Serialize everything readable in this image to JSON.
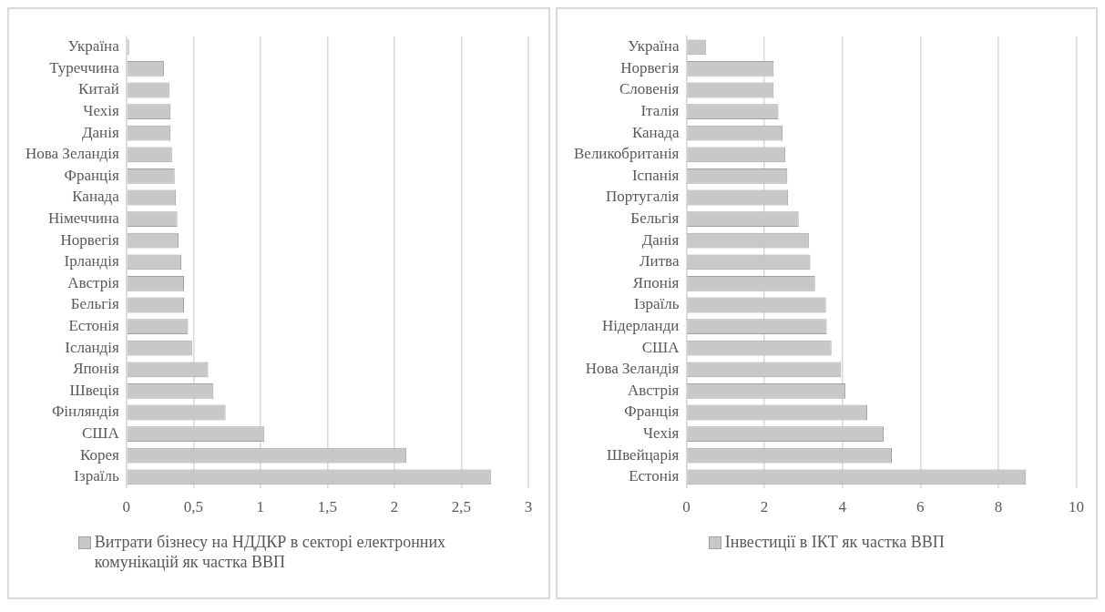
{
  "chart_data": [
    {
      "type": "bar",
      "orientation": "horizontal",
      "categories": [
        "Україна",
        "Туреччина",
        "Китай",
        "Чехія",
        "Данія",
        "Нова Зеландія",
        "Франція",
        "Канада",
        "Німеччина",
        "Норвегія",
        "Ірландія",
        "Австрія",
        "Бельгія",
        "Естонія",
        "Ісландія",
        "Японія",
        "Швеція",
        "Фінляндія",
        "США",
        "Корея",
        "Ізраїль"
      ],
      "series": [
        {
          "name": "Витрати бізнесу на НДДКР в секторі електронних комунікацій як частка ВВП",
          "color": "#c8c8c8",
          "values": [
            0.02,
            0.28,
            0.32,
            0.33,
            0.33,
            0.34,
            0.36,
            0.37,
            0.38,
            0.39,
            0.41,
            0.43,
            0.43,
            0.46,
            0.49,
            0.61,
            0.65,
            0.74,
            1.03,
            2.09,
            2.72
          ]
        }
      ],
      "xlim": [
        0,
        3
      ],
      "xticks": [
        0,
        {
          "value": 0.5,
          "label": "0,5"
        },
        1,
        {
          "value": 1.5,
          "label": "1,5"
        },
        2,
        {
          "value": 2.5,
          "label": "2,5"
        },
        3
      ],
      "grid": "x",
      "legend": "bottom"
    },
    {
      "type": "bar",
      "orientation": "horizontal",
      "categories": [
        "Україна",
        "Норвегія",
        "Словенія",
        "Італія",
        "Канада",
        "Великобританія",
        "Іспанія",
        "Португалія",
        "Бельгія",
        "Данія",
        "Литва",
        "Японія",
        "Ізраїль",
        "Нідерланди",
        "США",
        "Нова Зеландія",
        "Австрія",
        "Франція",
        "Чехія",
        "Швейцарія",
        "Естонія"
      ],
      "series": [
        {
          "name": "Інвестиції в ІКТ як частка ВВП",
          "color": "#c8c8c8",
          "values": [
            0.5,
            2.24,
            2.24,
            2.36,
            2.47,
            2.54,
            2.59,
            2.61,
            2.88,
            3.14,
            3.18,
            3.3,
            3.58,
            3.6,
            3.72,
            3.97,
            4.08,
            4.64,
            5.06,
            5.27,
            8.71
          ]
        }
      ],
      "xlim": [
        0,
        10
      ],
      "xticks": [
        0,
        2,
        4,
        6,
        8,
        10
      ],
      "grid": "x",
      "legend": "bottom"
    }
  ]
}
